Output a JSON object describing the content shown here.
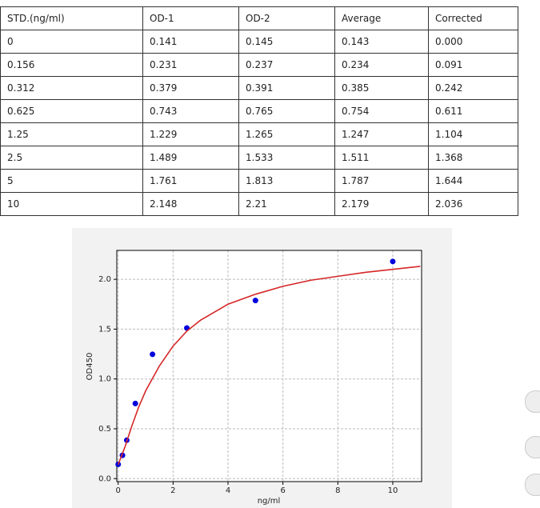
{
  "table": {
    "header": [
      "STD.(ng/ml)",
      "OD-1",
      "OD-2",
      "Average",
      "Corrected"
    ],
    "rows": [
      [
        "0",
        "0.141",
        "0.145",
        "0.143",
        "0.000"
      ],
      [
        "0.156",
        "0.231",
        "0.237",
        "0.234",
        "0.091"
      ],
      [
        "0.312",
        "0.379",
        "0.391",
        "0.385",
        "0.242"
      ],
      [
        "0.625",
        "0.743",
        "0.765",
        "0.754",
        "0.611"
      ],
      [
        "1.25",
        "1.229",
        "1.265",
        "1.247",
        "1.104"
      ],
      [
        "2.5",
        "1.489",
        "1.533",
        "1.511",
        "1.368"
      ],
      [
        "5",
        "1.761",
        "1.813",
        "1.787",
        "1.644"
      ],
      [
        "10",
        "2.148",
        "2.21",
        "2.179",
        "2.036"
      ]
    ]
  },
  "chart_data": {
    "type": "scatter",
    "x_label": "ng/ml",
    "y_label": "OD450",
    "xlim": [
      -0.05,
      11.05
    ],
    "ylim": [
      -0.03,
      2.29
    ],
    "xticks": [
      0,
      2,
      4,
      6,
      8,
      10
    ],
    "yticks": [
      {
        "value": 0,
        "label": "0.0"
      },
      0.5,
      {
        "value": 1,
        "label": "1.0"
      },
      1.5,
      {
        "value": 2,
        "label": "2.0"
      }
    ],
    "grid": true,
    "series": [
      {
        "type": "scatter",
        "color": "#0000dd",
        "x": [
          0,
          0.156,
          0.312,
          0.625,
          1.25,
          2.5,
          5,
          10
        ],
        "values": [
          0.143,
          0.234,
          0.385,
          0.754,
          1.247,
          1.511,
          1.787,
          2.179
        ]
      },
      {
        "type": "line",
        "color": "#d62728",
        "x": [
          0,
          0.25,
          0.5,
          0.75,
          1,
          1.5,
          2,
          2.5,
          3,
          4,
          5,
          6,
          7,
          8,
          9,
          10,
          11
        ],
        "values": [
          0.14,
          0.32,
          0.53,
          0.72,
          0.88,
          1.13,
          1.33,
          1.48,
          1.59,
          1.75,
          1.85,
          1.93,
          1.99,
          2.03,
          2.07,
          2.1,
          2.13
        ]
      }
    ]
  }
}
